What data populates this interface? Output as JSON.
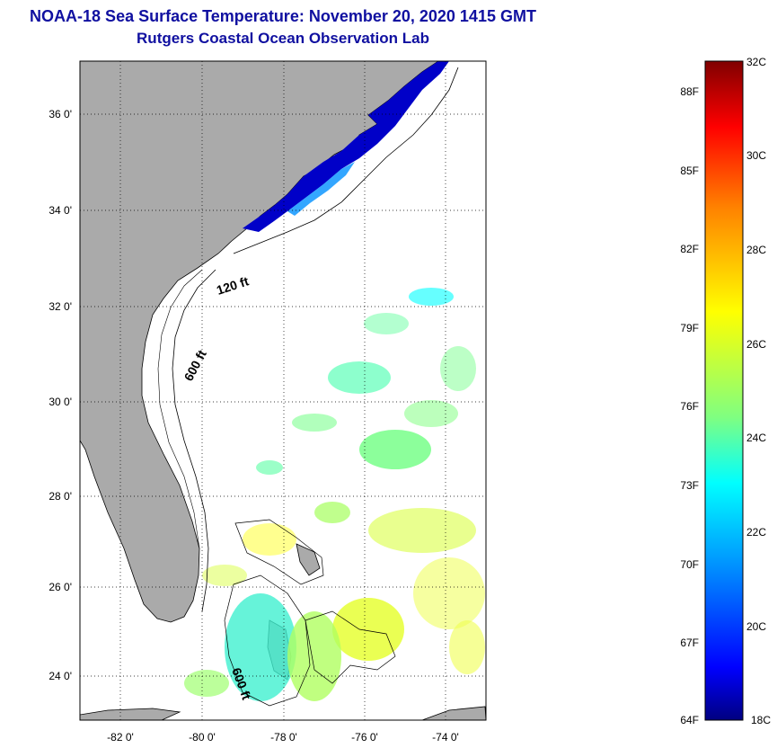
{
  "title": "NOAA-18 Sea Surface Temperature:  November 20, 2020 1415 GMT",
  "subtitle": "Rutgers Coastal Ocean Observation Lab",
  "map": {
    "lon_range": [
      -83,
      -73
    ],
    "lat_range": [
      23,
      37
    ],
    "lat_ticks": [
      "36 0'",
      "34 0'",
      "32 0'",
      "30 0'",
      "28 0'",
      "26 0'",
      "24 0'"
    ],
    "lon_ticks": [
      "-82 0'",
      "-80 0'",
      "-78 0'",
      "-76 0'",
      "-74 0'"
    ],
    "isobaths": [
      "120 ft",
      "600 ft",
      "600 ft"
    ],
    "land_color": "#aaaaaa",
    "ocean_color": "#ffffff",
    "grid": "dotted"
  },
  "colorbar": {
    "fahrenheit": [
      "88F",
      "85F",
      "82F",
      "79F",
      "76F",
      "73F",
      "70F",
      "67F",
      "64F"
    ],
    "celsius": [
      "32C",
      "30C",
      "28C",
      "26C",
      "24C",
      "22C",
      "20C",
      "18C"
    ],
    "range_c": [
      18,
      32
    ],
    "colors": [
      "#000080",
      "#0000ff",
      "#00a0ff",
      "#00ffff",
      "#80ff80",
      "#ffff00",
      "#ff8000",
      "#ff0000",
      "#800000"
    ]
  }
}
